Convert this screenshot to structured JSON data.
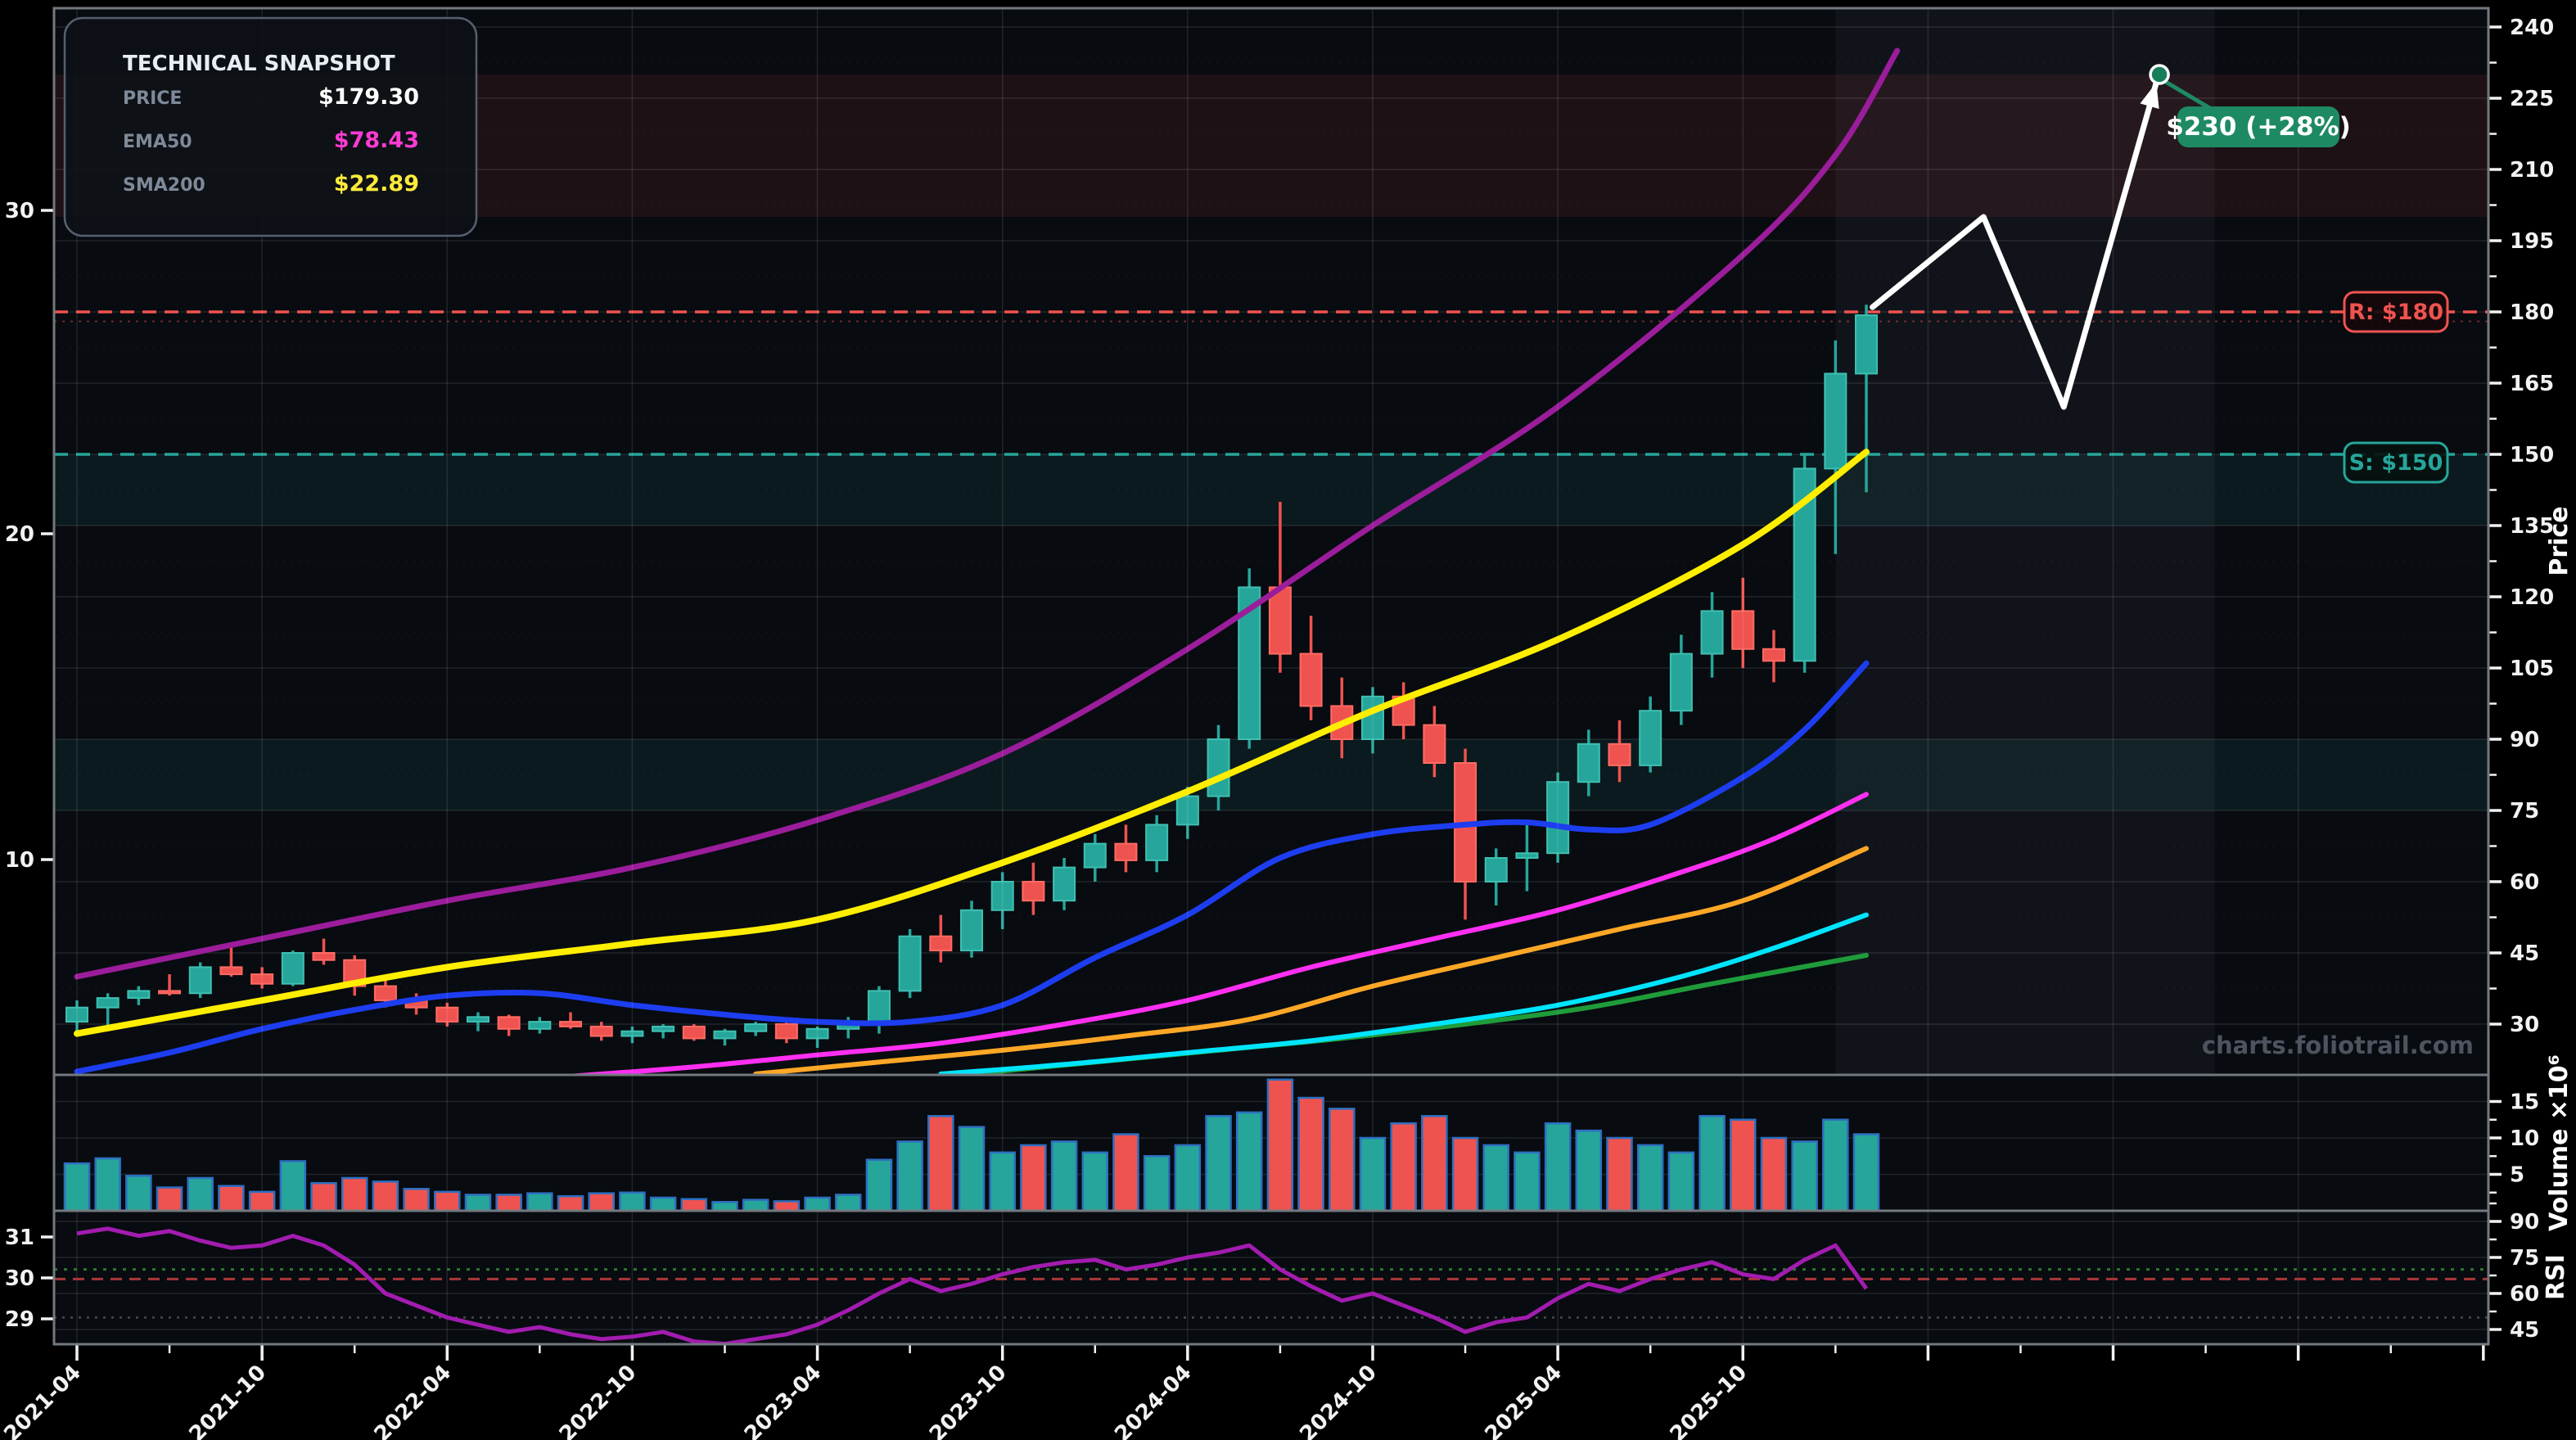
{
  "figure": {
    "bg": "#000000",
    "panel_bg": "#080b10",
    "border_color": "#72797f",
    "grid_color": "rgba(255,255,255,0.10)",
    "grid_minor_color": "rgba(255,255,255,0.055)",
    "tick_color": "#f2f2f2"
  },
  "snapshot": {
    "title": "TECHNICAL SNAPSHOT",
    "rows": [
      {
        "label": "PRICE",
        "value": "$179.30",
        "value_color": "#ffffff"
      },
      {
        "label": "EMA50",
        "value": "$78.43",
        "value_color": "#ff3bd4"
      },
      {
        "label": "SMA200",
        "value": "$22.89",
        "value_color": "#ffeb3b"
      }
    ]
  },
  "watermark": "charts.foliotrail.com",
  "axes": {
    "price": {
      "title": "Price",
      "ticks": [
        240,
        225,
        210,
        195,
        180,
        165,
        150,
        135,
        120,
        105,
        90,
        75,
        60,
        45,
        30
      ]
    },
    "volume": {
      "title": "Volume ×10⁶",
      "ticks": [
        15,
        10,
        5
      ]
    },
    "rsi": {
      "title": "RSI",
      "ticks": [
        90,
        75,
        60,
        45
      ]
    },
    "left_main": {
      "ticks": [
        30,
        20,
        10
      ]
    },
    "left_rsi": {
      "ticks": [
        31,
        30,
        29
      ]
    },
    "x": {
      "ticks": [
        {
          "m": 0,
          "label": "2021-04"
        },
        {
          "m": 6,
          "label": "2021-10"
        },
        {
          "m": 12,
          "label": "2022-04"
        },
        {
          "m": 18,
          "label": "2022-10"
        },
        {
          "m": 24,
          "label": "2023-04"
        },
        {
          "m": 30,
          "label": "2023-10"
        },
        {
          "m": 36,
          "label": "2024-04"
        },
        {
          "m": 42,
          "label": "2024-10"
        },
        {
          "m": 48,
          "label": "2025-04"
        },
        {
          "m": 54,
          "label": "2025-10"
        }
      ],
      "unlabeled_grid_months": [
        60,
        66,
        72
      ]
    }
  },
  "levels": {
    "resistance": {
      "label": "R: $180",
      "price": 180,
      "color": "#ef5350"
    },
    "support": {
      "label": "S: $150",
      "price": 150,
      "color": "#26a69a"
    },
    "minor_dotted": {
      "price": 178,
      "color": "rgba(239,83,80,0.45)"
    }
  },
  "annotation": {
    "label": "$230 (+28%)",
    "price": 230,
    "box_color": "#1e8a63",
    "text_color": "#ffffff"
  },
  "chart_data": {
    "type": "candlestick",
    "title": "",
    "x_unit": "month",
    "volume_unit": "1e6",
    "dates": [
      "2021-04",
      "2021-05",
      "2021-06",
      "2021-07",
      "2021-08",
      "2021-09",
      "2021-10",
      "2021-11",
      "2021-12",
      "2022-01",
      "2022-02",
      "2022-03",
      "2022-04",
      "2022-05",
      "2022-06",
      "2022-07",
      "2022-08",
      "2022-09",
      "2022-10",
      "2022-11",
      "2022-12",
      "2023-01",
      "2023-02",
      "2023-03",
      "2023-04",
      "2023-05",
      "2023-06",
      "2023-07",
      "2023-08",
      "2023-09",
      "2023-10",
      "2023-11",
      "2023-12",
      "2024-01",
      "2024-02",
      "2024-03",
      "2024-04",
      "2024-05",
      "2024-06",
      "2024-07",
      "2024-08",
      "2024-09",
      "2024-10",
      "2024-11",
      "2024-12",
      "2025-01",
      "2025-02",
      "2025-03",
      "2025-04",
      "2025-05",
      "2025-06",
      "2025-07",
      "2025-08",
      "2025-09",
      "2025-10",
      "2025-11",
      "2025-12",
      "2026-01",
      "2026-02"
    ],
    "ohlc": [
      [
        30.5,
        35,
        28,
        33.5
      ],
      [
        33.5,
        36.5,
        29,
        35.5
      ],
      [
        35.5,
        38,
        34,
        37
      ],
      [
        37,
        40.5,
        36,
        36.5
      ],
      [
        36.5,
        43,
        35.5,
        42
      ],
      [
        42,
        46.5,
        40,
        40.5
      ],
      [
        40.5,
        42,
        37.5,
        38.5
      ],
      [
        38.5,
        45.5,
        38,
        45
      ],
      [
        45,
        48,
        42.5,
        43.5
      ],
      [
        43.5,
        44.5,
        36,
        38
      ],
      [
        38,
        40,
        33.5,
        35
      ],
      [
        35,
        36.5,
        32,
        33.5
      ],
      [
        33.5,
        34.5,
        29.5,
        30.5
      ],
      [
        30.5,
        32.5,
        28.5,
        31.5
      ],
      [
        31.5,
        32,
        27.5,
        29
      ],
      [
        29,
        31.5,
        28,
        30.5
      ],
      [
        30.5,
        32.5,
        29,
        29.5
      ],
      [
        29.5,
        30.5,
        26.5,
        27.5
      ],
      [
        27.5,
        29.5,
        26,
        28.5
      ],
      [
        28.5,
        30,
        27,
        29.5
      ],
      [
        29.5,
        30,
        26.5,
        27
      ],
      [
        27,
        29,
        25.5,
        28.5
      ],
      [
        28.5,
        30.5,
        27.5,
        30
      ],
      [
        30,
        31,
        26,
        27
      ],
      [
        27,
        29.5,
        25,
        29
      ],
      [
        29,
        31.5,
        27,
        30
      ],
      [
        30,
        38,
        28,
        37
      ],
      [
        37,
        50,
        35.5,
        48.5
      ],
      [
        48.5,
        53,
        43,
        45.5
      ],
      [
        45.5,
        56,
        44,
        54
      ],
      [
        54,
        62,
        50,
        60
      ],
      [
        60,
        64,
        53,
        56
      ],
      [
        56,
        65,
        54,
        63
      ],
      [
        63,
        70,
        60,
        68
      ],
      [
        68,
        72,
        62,
        64.5
      ],
      [
        64.5,
        74,
        62,
        72
      ],
      [
        72,
        80,
        69,
        78
      ],
      [
        78,
        93,
        75,
        90
      ],
      [
        90,
        126,
        88,
        122
      ],
      [
        122,
        140,
        104,
        108
      ],
      [
        108,
        116,
        94,
        97
      ],
      [
        97,
        103,
        86,
        90
      ],
      [
        90,
        101,
        87,
        99
      ],
      [
        99,
        102,
        90,
        93
      ],
      [
        93,
        97,
        82,
        85
      ],
      [
        85,
        88,
        52,
        60
      ],
      [
        60,
        67,
        55,
        65
      ],
      [
        65,
        73,
        58,
        66
      ],
      [
        66,
        83,
        64,
        81
      ],
      [
        81,
        92,
        78,
        89
      ],
      [
        89,
        94,
        81,
        84.5
      ],
      [
        84.5,
        99,
        83,
        96
      ],
      [
        96,
        112,
        93,
        108
      ],
      [
        108,
        121,
        103,
        117
      ],
      [
        117,
        124,
        105,
        109
      ],
      [
        109,
        113,
        102,
        106.5
      ],
      [
        106.5,
        150,
        104,
        147
      ],
      [
        147,
        174,
        129,
        167
      ],
      [
        167,
        181.5,
        142,
        179.3
      ]
    ],
    "volume": [
      6.5,
      7.2,
      4.8,
      3.2,
      4.5,
      3.4,
      2.6,
      6.8,
      3.8,
      4.5,
      4.0,
      3.0,
      2.6,
      2.2,
      2.2,
      2.4,
      2.0,
      2.4,
      2.5,
      1.8,
      1.6,
      1.2,
      1.5,
      1.3,
      1.8,
      2.2,
      7.0,
      9.5,
      13,
      11.5,
      8,
      9,
      9.5,
      8,
      10.5,
      7.5,
      9,
      13,
      13.5,
      18,
      15.5,
      14,
      10,
      12,
      13,
      10,
      9,
      8,
      12,
      11,
      10,
      9,
      8,
      13,
      12.5,
      10,
      9.5,
      12.5,
      10.5
    ],
    "rsi": [
      85,
      87,
      84,
      86,
      82,
      79,
      80,
      84,
      80,
      72,
      60,
      55,
      50,
      47,
      44,
      46,
      43,
      41,
      42,
      44,
      40,
      39,
      41,
      43,
      47,
      53,
      60,
      66,
      61,
      64,
      68,
      71,
      73,
      74,
      70,
      72,
      75,
      77,
      80,
      70,
      63,
      57,
      60,
      55,
      50,
      44,
      48,
      50,
      58,
      64,
      61,
      66,
      70,
      73,
      68,
      66,
      74,
      80,
      62
    ],
    "rsi_levels": [
      {
        "value": 70,
        "color": "#2e7d32",
        "dash": "4 8",
        "width": 3,
        "opacity": 0.95
      },
      {
        "value": 66,
        "color": "#b23b3b",
        "dash": "14 9",
        "width": 3,
        "opacity": 0.95
      },
      {
        "value": 50,
        "color": "#8a8a8a",
        "dash": "3 7",
        "width": 2.5,
        "opacity": 0.5
      }
    ],
    "bands": [
      {
        "from": 200,
        "to": 230,
        "color": "rgba(229,83,80,0.10)"
      },
      {
        "from": 135,
        "to": 150,
        "color": "rgba(38,166,154,0.10)"
      },
      {
        "from": 75,
        "to": 90,
        "color": "rgba(38,166,154,0.10)"
      }
    ],
    "forecast_zone": {
      "from_month": 57.0,
      "to_month": 69.3,
      "color": "rgba(160,172,195,0.06)"
    },
    "ma_lines": [
      {
        "name": "ma-green",
        "color": "#1f9c3a",
        "width": 6,
        "points": [
          [
            29,
            19.5
          ],
          [
            33,
            22
          ],
          [
            37,
            24.5
          ],
          [
            41,
            27
          ],
          [
            45,
            30
          ],
          [
            49,
            33.5
          ],
          [
            53,
            38.5
          ],
          [
            58,
            44.5
          ]
        ]
      },
      {
        "name": "ma-cyan",
        "color": "#00e5ff",
        "width": 6,
        "points": [
          [
            28,
            19.5
          ],
          [
            32,
            21.5
          ],
          [
            36,
            24
          ],
          [
            40,
            26.5
          ],
          [
            44,
            30
          ],
          [
            48,
            34
          ],
          [
            52,
            40
          ],
          [
            55,
            46
          ],
          [
            58,
            53
          ]
        ]
      },
      {
        "name": "ma-orange",
        "color": "#ffa726",
        "width": 6,
        "points": [
          [
            22,
            19.5
          ],
          [
            26,
            22
          ],
          [
            30,
            24.5
          ],
          [
            34,
            27.5
          ],
          [
            38,
            31
          ],
          [
            42,
            38
          ],
          [
            46,
            44
          ],
          [
            50,
            50
          ],
          [
            54,
            56
          ],
          [
            58,
            67
          ]
        ]
      },
      {
        "name": "ma-magenta",
        "color": "#ff2ff2",
        "width": 6,
        "points": [
          [
            16,
            19
          ],
          [
            20,
            21
          ],
          [
            24,
            23.5
          ],
          [
            28,
            26
          ],
          [
            32,
            30
          ],
          [
            36,
            35
          ],
          [
            40,
            42
          ],
          [
            44,
            48
          ],
          [
            48,
            54
          ],
          [
            52,
            62
          ],
          [
            55,
            69
          ],
          [
            58,
            78.4
          ]
        ]
      },
      {
        "name": "ma-blue",
        "color": "#1d3df0",
        "width": 7,
        "points": [
          [
            0,
            20
          ],
          [
            3,
            24
          ],
          [
            6,
            29
          ],
          [
            9,
            33
          ],
          [
            12,
            36
          ],
          [
            15,
            36.5
          ],
          [
            18,
            34
          ],
          [
            21,
            32
          ],
          [
            24,
            30.5
          ],
          [
            27,
            30.5
          ],
          [
            30,
            34
          ],
          [
            33,
            44
          ],
          [
            36,
            53
          ],
          [
            39,
            65
          ],
          [
            42,
            70
          ],
          [
            45,
            72
          ],
          [
            47,
            72.5
          ],
          [
            49,
            71
          ],
          [
            51,
            72
          ],
          [
            54,
            82
          ],
          [
            56,
            92
          ],
          [
            58,
            106
          ]
        ]
      },
      {
        "name": "ma-yellow",
        "color": "#ffee00",
        "width": 8,
        "points": [
          [
            0,
            28
          ],
          [
            6,
            35
          ],
          [
            12,
            42
          ],
          [
            18,
            47
          ],
          [
            24,
            52
          ],
          [
            30,
            64
          ],
          [
            36,
            79
          ],
          [
            42,
            96
          ],
          [
            48,
            111
          ],
          [
            54,
            131
          ],
          [
            58,
            150.5
          ]
        ]
      },
      {
        "name": "ma-purple",
        "color": "#9b1d9b",
        "width": 7,
        "points": [
          [
            0,
            40
          ],
          [
            6,
            48
          ],
          [
            12,
            56
          ],
          [
            18,
            63
          ],
          [
            24,
            73
          ],
          [
            30,
            87
          ],
          [
            36,
            109
          ],
          [
            42,
            135
          ],
          [
            48,
            160
          ],
          [
            54,
            192
          ],
          [
            57,
            213
          ],
          [
            59,
            235
          ]
        ]
      }
    ],
    "rsi_color": "#a21caf",
    "projection": {
      "color": "#ffffff",
      "width": 7,
      "points": [
        [
          58.2,
          181
        ],
        [
          61.8,
          200
        ],
        [
          64.4,
          160
        ],
        [
          67.4,
          228.3
        ]
      ],
      "marker_month": 67.5,
      "marker_price": 230
    },
    "candle_up_color": "#26a69a",
    "candle_up_edge": "#3fbfb2",
    "candle_down_color": "#ef5350",
    "candle_down_edge": "#ff6b63",
    "volume_edge_color": "#2d6fc2"
  }
}
